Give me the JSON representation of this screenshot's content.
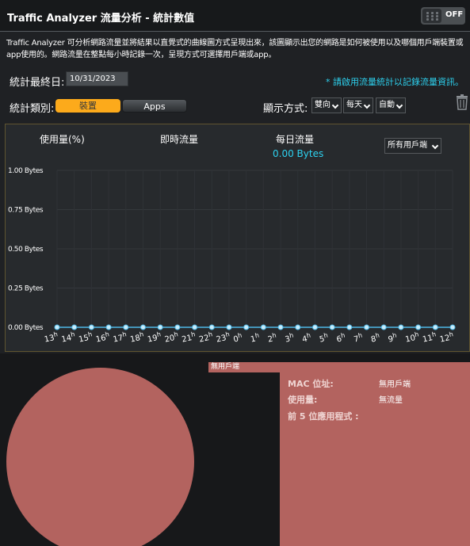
{
  "header": {
    "title": "Traffic Analyzer 流量分析 - 統計數值",
    "toggle_label": "OFF"
  },
  "description": "Traffic Analyzer 可分析網路流量並將結果以直覺式的曲線圖方式呈現出來，該圖顯示出您的網路是如何被使用以及哪個用戶端裝置或app使用的。網路流量在整點每小時記錄一次，呈現方式可選擇用戶端或app。",
  "stats": {
    "end_date_label": "統計最終日:",
    "end_date_value": "10/31/2023",
    "note": "* 請啟用流量統計以記錄流量資訊。",
    "category_label": "統計類別:",
    "category_device": "裝置",
    "category_apps": "Apps",
    "display_label": "顯示方式:",
    "display_direction": "雙向",
    "display_period": "每天",
    "display_scale": "自動"
  },
  "chart_tabs": {
    "usage": "使用量(%)",
    "realtime": "即時流量",
    "daily": "每日流量",
    "daily_value": "0.00 Bytes",
    "client_select": "所有用戶端"
  },
  "chart_data": {
    "type": "line",
    "x": [
      "13h",
      "14h",
      "15h",
      "16h",
      "17h",
      "18h",
      "19h",
      "20h",
      "21h",
      "22h",
      "23h",
      "0h",
      "1h",
      "2h",
      "3h",
      "4h",
      "5h",
      "6h",
      "7h",
      "8h",
      "9h",
      "10h",
      "11h",
      "12h"
    ],
    "series": [
      {
        "values": [
          0,
          0,
          0,
          0,
          0,
          0,
          0,
          0,
          0,
          0,
          0,
          0,
          0,
          0,
          0,
          0,
          0,
          0,
          0,
          0,
          0,
          0,
          0,
          0
        ]
      }
    ],
    "yticks": [
      0,
      0.25,
      0.5,
      0.75,
      1.0
    ],
    "yticklabels": [
      "0.00 Bytes",
      "0.25 Bytes",
      "0.50 Bytes",
      "0.75 Bytes",
      "1.00 Bytes"
    ],
    "ylim": [
      0,
      1
    ],
    "grid": true,
    "line_color": "#4fb8e6"
  },
  "legend_tag": "無用戶端",
  "client_info": {
    "mac_label": "MAC 位址:",
    "mac_value": "無用戶端",
    "usage_label": "使用量:",
    "usage_value": "無流量",
    "top_apps_label": "前 5 位應用程式 :"
  },
  "colors": {
    "accent_orange": "#fcaa1b",
    "accent_cyan": "#2dd2f0",
    "pie_color": "#b3635f"
  },
  "icons": {
    "trash": "trash-icon",
    "dropdown": "chevron-down-icon"
  }
}
